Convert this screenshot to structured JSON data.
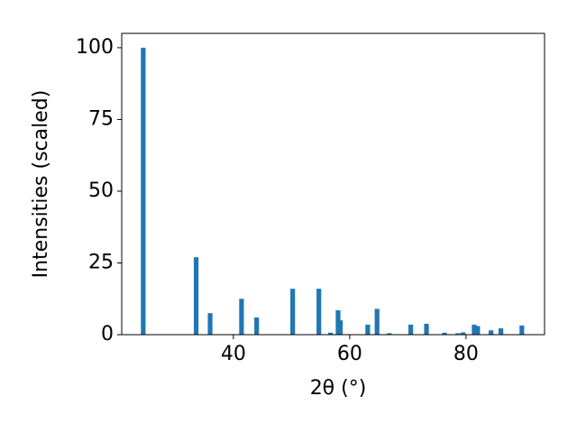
{
  "chart_data": {
    "type": "bar",
    "x_label": "2θ (°)",
    "y_label": "Intensities (scaled)",
    "x": [
      24.5,
      33.6,
      36.0,
      41.4,
      44.0,
      50.2,
      54.7,
      56.7,
      58.0,
      58.4,
      63.1,
      64.7,
      66.8,
      70.5,
      73.2,
      76.3,
      78.6,
      79.5,
      81.4,
      82.0,
      84.3,
      86.0,
      89.6
    ],
    "values": [
      100,
      27,
      7.5,
      12.5,
      6,
      16,
      16,
      0.7,
      8.5,
      5,
      3.5,
      9,
      0.5,
      3.5,
      3.8,
      0.7,
      0.5,
      0.8,
      3.5,
      3.0,
      1.5,
      2.2,
      3.2
    ],
    "color": "#1f77b4",
    "xlim": [
      20.8,
      93.5
    ],
    "xticks": [
      40,
      60,
      80
    ],
    "ylim": [
      0,
      105
    ],
    "yticks": [
      0,
      25,
      50,
      75,
      100
    ]
  }
}
